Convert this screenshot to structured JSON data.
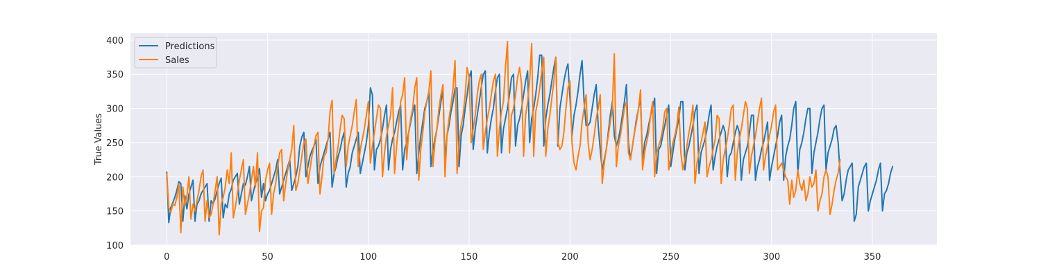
{
  "chart_data": {
    "type": "line",
    "title": "",
    "xlabel": "",
    "ylabel": "True Values",
    "xlim": [
      -18,
      382
    ],
    "ylim": [
      100,
      410
    ],
    "xticks": [
      0,
      50,
      100,
      150,
      200,
      250,
      300,
      350
    ],
    "yticks": [
      100,
      150,
      200,
      250,
      300,
      350,
      400
    ],
    "grid": true,
    "legend_position": "top-left",
    "series": [
      {
        "name": "Predictions",
        "color": "#1f77b4",
        "x_start": 0,
        "values": [
          207,
          133,
          155,
          162,
          170,
          180,
          193,
          190,
          135,
          172,
          153,
          175,
          185,
          195,
          135,
          160,
          165,
          175,
          180,
          185,
          190,
          135,
          165,
          160,
          168,
          180,
          190,
          198,
          140,
          160,
          155,
          175,
          182,
          195,
          200,
          205,
          160,
          175,
          190,
          188,
          200,
          215,
          165,
          178,
          190,
          198,
          212,
          170,
          190,
          165,
          175,
          180,
          190,
          200,
          210,
          225,
          175,
          185,
          195,
          205,
          215,
          225,
          180,
          190,
          200,
          215,
          245,
          258,
          265,
          200,
          215,
          230,
          238,
          245,
          255,
          190,
          215,
          225,
          235,
          245,
          255,
          265,
          185,
          205,
          215,
          230,
          240,
          255,
          265,
          185,
          205,
          215,
          235,
          245,
          255,
          265,
          205,
          220,
          235,
          250,
          275,
          330,
          320,
          210,
          240,
          245,
          255,
          270,
          290,
          305,
          210,
          240,
          255,
          265,
          280,
          295,
          305,
          210,
          240,
          250,
          265,
          280,
          295,
          305,
          205,
          235,
          260,
          280,
          300,
          310,
          325,
          215,
          240,
          255,
          270,
          290,
          310,
          325,
          225,
          260,
          275,
          295,
          310,
          330,
          330,
          215,
          260,
          275,
          300,
          320,
          345,
          355,
          240,
          270,
          290,
          310,
          330,
          350,
          355,
          235,
          265,
          285,
          300,
          325,
          345,
          350,
          235,
          270,
          285,
          300,
          320,
          345,
          350,
          245,
          275,
          285,
          300,
          320,
          340,
          355,
          250,
          285,
          300,
          320,
          345,
          378,
          378,
          245,
          285,
          305,
          320,
          340,
          360,
          375,
          245,
          300,
          320,
          340,
          355,
          365,
          315,
          260,
          290,
          305,
          325,
          350,
          370,
          310,
          275,
          275,
          280,
          300,
          320,
          335,
          275,
          240,
          210,
          225,
          240,
          265,
          290,
          310,
          260,
          245,
          255,
          270,
          290,
          310,
          335,
          250,
          225,
          245,
          265,
          285,
          300,
          315,
          220,
          250,
          260,
          275,
          290,
          300,
          315,
          205,
          240,
          245,
          260,
          275,
          290,
          305,
          215,
          235,
          255,
          270,
          285,
          310,
          310,
          210,
          235,
          245,
          260,
          275,
          295,
          305,
          205,
          235,
          245,
          255,
          270,
          290,
          305,
          210,
          230,
          245,
          255,
          265,
          275,
          265,
          200,
          230,
          235,
          250,
          265,
          275,
          265,
          195,
          225,
          235,
          245,
          265,
          290,
          290,
          195,
          215,
          225,
          240,
          250,
          265,
          280,
          195,
          215,
          230,
          245,
          260,
          280,
          290,
          195,
          230,
          245,
          255,
          275,
          300,
          310,
          205,
          240,
          250,
          265,
          285,
          300,
          300,
          205,
          235,
          250,
          265,
          285,
          300,
          305,
          210,
          235,
          245,
          255,
          270,
          275,
          250,
          205,
          165,
          175,
          195,
          210,
          215,
          220,
          135,
          145,
          185,
          195,
          205,
          215,
          220,
          150,
          165,
          175,
          185,
          195,
          210,
          220,
          150,
          175,
          180,
          190,
          205,
          215
        ]
      },
      {
        "name": "Sales",
        "color": "#ff7f0e",
        "x_start": 0,
        "values": [
          205,
          155,
          148,
          160,
          158,
          170,
          190,
          118,
          185,
          158,
          172,
          200,
          138,
          160,
          150,
          165,
          180,
          200,
          210,
          135,
          165,
          140,
          145,
          160,
          180,
          200,
          115,
          160,
          170,
          185,
          210,
          190,
          235,
          140,
          155,
          175,
          195,
          210,
          225,
          145,
          160,
          175,
          195,
          215,
          185,
          235,
          120,
          150,
          155,
          195,
          210,
          220,
          145,
          175,
          190,
          215,
          235,
          240,
          165,
          190,
          210,
          225,
          240,
          275,
          180,
          190,
          210,
          230,
          250,
          255,
          190,
          210,
          230,
          245,
          260,
          265,
          175,
          200,
          230,
          235,
          255,
          295,
          312,
          205,
          225,
          245,
          270,
          290,
          285,
          215,
          245,
          260,
          275,
          295,
          313,
          215,
          240,
          255,
          270,
          290,
          310,
          220,
          245,
          265,
          285,
          305,
          300,
          200,
          235,
          260,
          275,
          290,
          330,
          205,
          245,
          275,
          310,
          320,
          345,
          225,
          265,
          285,
          300,
          330,
          345,
          195,
          240,
          265,
          295,
          310,
          325,
          355,
          215,
          250,
          270,
          300,
          320,
          335,
          200,
          260,
          285,
          305,
          330,
          370,
          205,
          250,
          275,
          290,
          320,
          360,
          345,
          250,
          270,
          290,
          320,
          340,
          350,
          240,
          265,
          285,
          300,
          320,
          340,
          350,
          230,
          270,
          295,
          310,
          360,
          398,
          235,
          290,
          300,
          320,
          345,
          360,
          335,
          230,
          290,
          310,
          340,
          395,
          230,
          295,
          310,
          330,
          355,
          375,
          230,
          270,
          290,
          315,
          340,
          375,
          250,
          240,
          245,
          265,
          300,
          330,
          340,
          250,
          220,
          210,
          230,
          245,
          280,
          300,
          320,
          250,
          225,
          240,
          260,
          285,
          300,
          320,
          190,
          220,
          240,
          260,
          280,
          300,
          380,
          215,
          245,
          260,
          280,
          300,
          310,
          235,
          225,
          245,
          265,
          280,
          300,
          327,
          210,
          235,
          250,
          265,
          290,
          310,
          200,
          235,
          245,
          255,
          270,
          295,
          300,
          210,
          230,
          250,
          260,
          275,
          302,
          235,
          210,
          225,
          245,
          265,
          280,
          305,
          190,
          220,
          235,
          250,
          265,
          280,
          200,
          215,
          225,
          240,
          255,
          290,
          285,
          190,
          225,
          240,
          255,
          275,
          300,
          305,
          195,
          235,
          255,
          270,
          290,
          310,
          300,
          205,
          230,
          245,
          260,
          280,
          300,
          315,
          210,
          230,
          245,
          260,
          275,
          295,
          305,
          210,
          215,
          220,
          210,
          200,
          195,
          160,
          195,
          170,
          180,
          210,
          190,
          180,
          195,
          165,
          175,
          200,
          185,
          190,
          210,
          150,
          165,
          175,
          200,
          210,
          200,
          145,
          160,
          180,
          195,
          205,
          225
        ]
      }
    ]
  }
}
